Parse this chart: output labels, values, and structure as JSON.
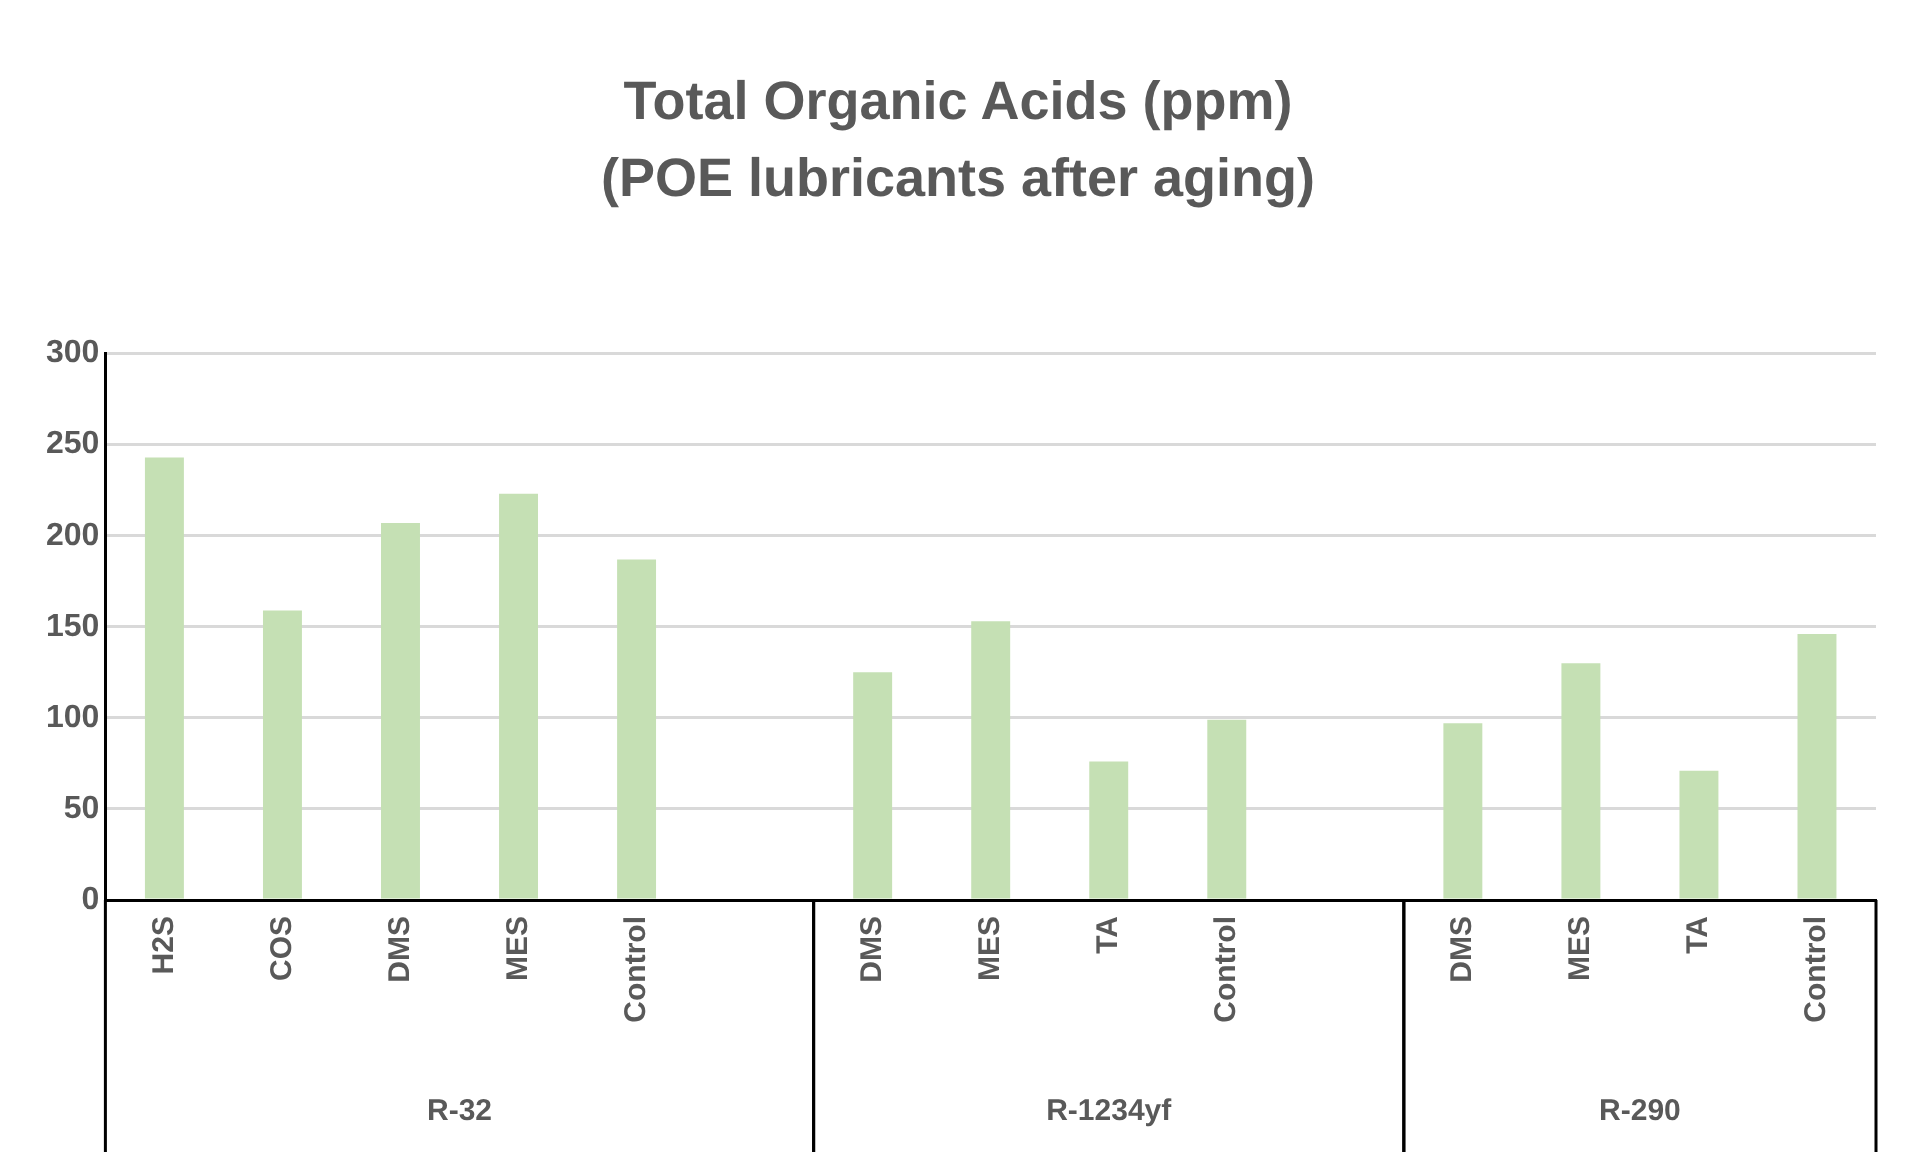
{
  "chart_data": {
    "type": "bar",
    "title": "Total Organic Acids (ppm)",
    "subtitle": "(POE lubricants after aging)",
    "categories": [
      "H2S",
      "COS",
      "DMS",
      "MES",
      "Control",
      null,
      "DMS",
      "MES",
      "TA",
      "Control",
      null,
      "DMS",
      "MES",
      "TA",
      "Control"
    ],
    "values": [
      243,
      159,
      207,
      223,
      187,
      null,
      125,
      153,
      76,
      99,
      null,
      97,
      130,
      71,
      146
    ],
    "color": "#c5e0b4",
    "ylim": [
      0,
      300
    ],
    "yticks": [
      0,
      50,
      100,
      150,
      200,
      250,
      300
    ],
    "grid": "y",
    "annotations": [
      "R-32",
      "R-1234yf",
      "R-290"
    ]
  }
}
